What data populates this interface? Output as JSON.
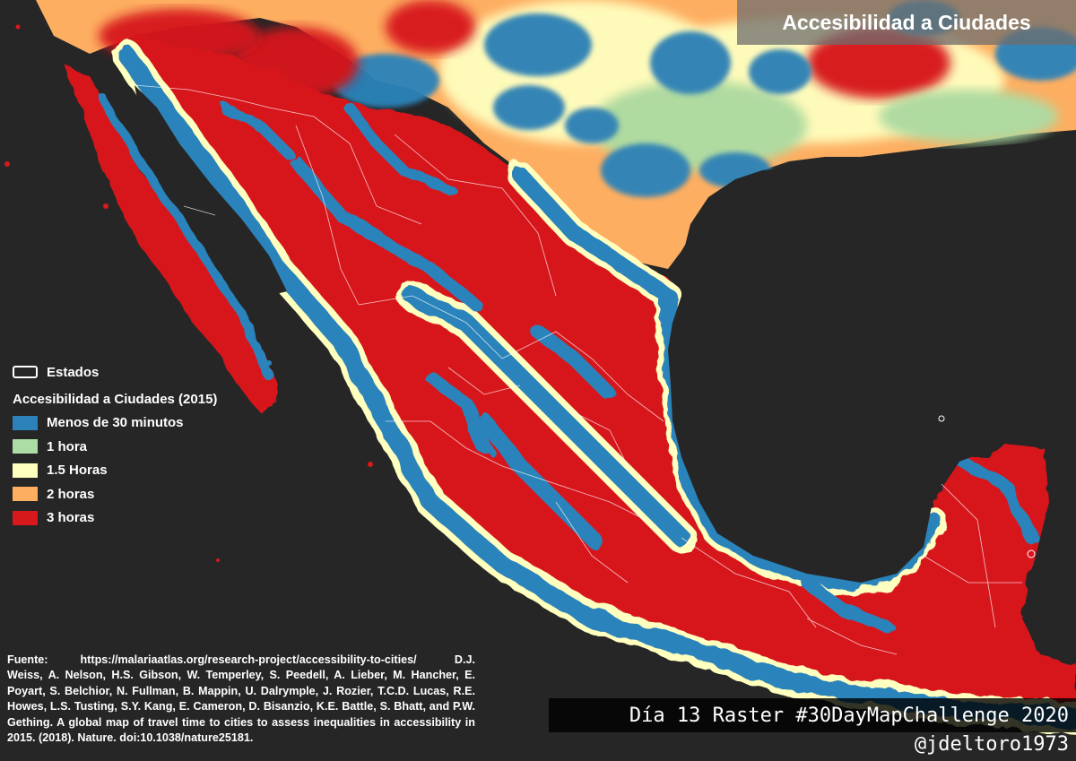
{
  "title": "Accesibilidad a Ciudades",
  "legend": {
    "states_label": "Estados",
    "title": "Accesibilidad a Ciudades (2015)",
    "items": [
      {
        "label": "Menos de 30 minutos",
        "color": "#2b83ba"
      },
      {
        "label": "1 hora",
        "color": "#abdda4"
      },
      {
        "label": "1.5 Horas",
        "color": "#ffffbf"
      },
      {
        "label": "2 horas",
        "color": "#fdae61"
      },
      {
        "label": "3 horas",
        "color": "#d7191c"
      }
    ]
  },
  "source": {
    "label": "Fuente:",
    "url": "https://malariaatlas.org/research-project/accessibility-to-cities/",
    "citation": "D.J. Weiss, A. Nelson, H.S. Gibson, W. Temperley, S. Peedell, A. Lieber, M. Hancher, E. Poyart, S. Belchior, N. Fullman, B. Mappin, U. Dalrymple, J. Rozier, T.C.D. Lucas, R.E. Howes, L.S. Tusting, S.Y. Kang, E. Cameron, D. Bisanzio, K.E. Battle, S. Bhatt, and P.W. Gething. A global map of travel time to cities to assess inequalities in accessibility in 2015. (2018). Nature. doi:10.1038/nature25181."
  },
  "challenge": "Día 13 Raster #30DayMapChallenge 2020",
  "handle": "@jdeltoro1973",
  "colors": {
    "background": "#262626",
    "water": "#262626",
    "state_lines": "#ffffff"
  }
}
